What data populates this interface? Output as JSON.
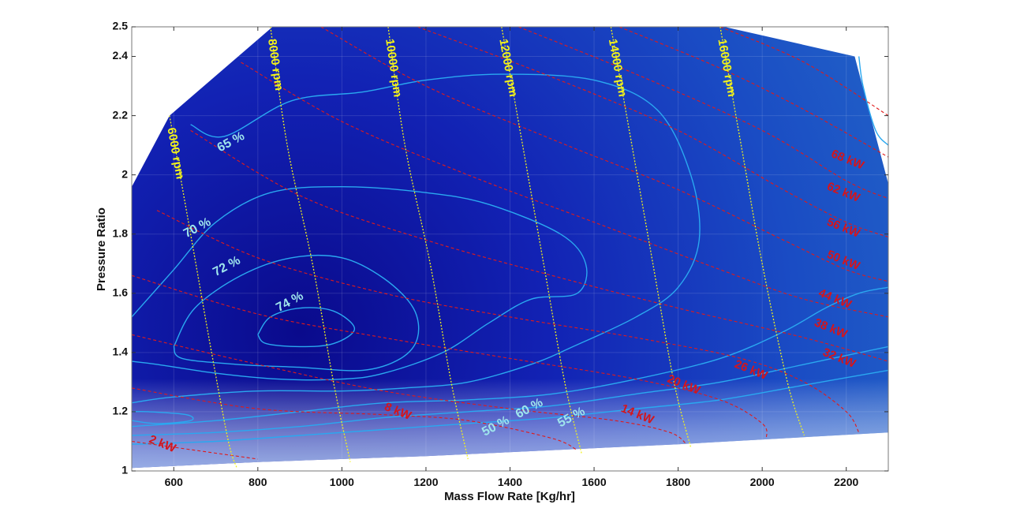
{
  "colors": {
    "background_dark": "#0a0a8c",
    "background_light": "#2060c8",
    "efficiency_contours": "#2aa8f0",
    "speed_lines": "#f2f21a",
    "power_lines": "#e01a1a"
  },
  "chart_data": {
    "type": "contour",
    "title": "",
    "xlabel": "Mass Flow Rate [Kg/hr]",
    "ylabel": "Pressure Ratio",
    "xlim": [
      500,
      2300
    ],
    "ylim": [
      1,
      2.5
    ],
    "xticks": [
      600,
      800,
      1000,
      1200,
      1400,
      1600,
      1800,
      2000,
      2200
    ],
    "yticks": [
      1,
      1.2,
      1.4,
      1.6,
      1.8,
      2,
      2.2,
      2.4,
      2.5
    ],
    "grid": true,
    "map_boundary": [
      [
        500,
        1.06
      ],
      [
        500,
        1.96
      ],
      [
        590,
        2.2
      ],
      [
        835,
        2.5
      ],
      [
        1910,
        2.5
      ],
      [
        2220,
        2.4
      ],
      [
        2300,
        1.97
      ],
      [
        2300,
        1.13
      ],
      [
        1800,
        1.09
      ],
      [
        1200,
        1.05
      ],
      [
        800,
        1.03
      ],
      [
        500,
        1.01
      ]
    ],
    "speed_lines": [
      {
        "label": "6000 rpm",
        "points": [
          [
            590,
            2.2
          ],
          [
            640,
            1.8
          ],
          [
            690,
            1.4
          ],
          [
            730,
            1.1
          ],
          [
            750,
            1.01
          ]
        ]
      },
      {
        "label": "8000 rpm",
        "points": [
          [
            830,
            2.5
          ],
          [
            870,
            2.1
          ],
          [
            930,
            1.7
          ],
          [
            980,
            1.3
          ],
          [
            1020,
            1.03
          ]
        ]
      },
      {
        "label": "10000 rpm",
        "points": [
          [
            1110,
            2.5
          ],
          [
            1150,
            2.1
          ],
          [
            1210,
            1.7
          ],
          [
            1260,
            1.3
          ],
          [
            1300,
            1.04
          ]
        ]
      },
      {
        "label": "12000 rpm",
        "points": [
          [
            1380,
            2.5
          ],
          [
            1430,
            2.1
          ],
          [
            1480,
            1.7
          ],
          [
            1530,
            1.3
          ],
          [
            1570,
            1.06
          ]
        ]
      },
      {
        "label": "14000 rpm",
        "points": [
          [
            1640,
            2.5
          ],
          [
            1690,
            2.1
          ],
          [
            1740,
            1.7
          ],
          [
            1790,
            1.3
          ],
          [
            1830,
            1.08
          ]
        ]
      },
      {
        "label": "16000 rpm",
        "points": [
          [
            1900,
            2.5
          ],
          [
            1950,
            2.1
          ],
          [
            2000,
            1.7
          ],
          [
            2060,
            1.3
          ],
          [
            2100,
            1.12
          ]
        ]
      }
    ],
    "efficiency_contours": [
      {
        "label": "74 %",
        "label_pos": [
          880,
          1.56
        ],
        "points": [
          [
            800,
            1.46
          ],
          [
            830,
            1.52
          ],
          [
            900,
            1.55
          ],
          [
            980,
            1.54
          ],
          [
            1030,
            1.48
          ],
          [
            980,
            1.43
          ],
          [
            900,
            1.42
          ],
          [
            820,
            1.43
          ],
          [
            800,
            1.46
          ]
        ]
      },
      {
        "label": "72 %",
        "label_pos": [
          730,
          1.68
        ],
        "points": [
          [
            600,
            1.42
          ],
          [
            650,
            1.55
          ],
          [
            760,
            1.66
          ],
          [
            880,
            1.72
          ],
          [
            1000,
            1.72
          ],
          [
            1100,
            1.65
          ],
          [
            1170,
            1.55
          ],
          [
            1180,
            1.45
          ],
          [
            1140,
            1.38
          ],
          [
            1050,
            1.34
          ],
          [
            900,
            1.35
          ],
          [
            750,
            1.36
          ],
          [
            620,
            1.38
          ],
          [
            600,
            1.42
          ]
        ]
      },
      {
        "label": "70 %",
        "label_pos": [
          660,
          1.81
        ],
        "points": [
          [
            500,
            1.52
          ],
          [
            600,
            1.68
          ],
          [
            700,
            1.84
          ],
          [
            830,
            1.94
          ],
          [
            1000,
            1.96
          ],
          [
            1200,
            1.94
          ],
          [
            1350,
            1.9
          ],
          [
            1520,
            1.8
          ],
          [
            1580,
            1.7
          ],
          [
            1560,
            1.6
          ],
          [
            1450,
            1.58
          ],
          [
            1350,
            1.5
          ],
          [
            1240,
            1.4
          ],
          [
            1100,
            1.33
          ],
          [
            1000,
            1.31
          ],
          [
            850,
            1.31
          ],
          [
            700,
            1.33
          ],
          [
            560,
            1.36
          ],
          [
            500,
            1.37
          ]
        ]
      },
      {
        "label": "65 %",
        "label_pos": [
          740,
          2.1
        ],
        "points": [
          [
            640,
            2.17
          ],
          [
            720,
            2.13
          ],
          [
            880,
            2.25
          ],
          [
            1050,
            2.28
          ],
          [
            1200,
            2.32
          ],
          [
            1380,
            2.34
          ],
          [
            1600,
            2.32
          ],
          [
            1750,
            2.22
          ],
          [
            1830,
            2.0
          ],
          [
            1850,
            1.78
          ],
          [
            1800,
            1.62
          ],
          [
            1700,
            1.52
          ],
          [
            1550,
            1.42
          ],
          [
            1450,
            1.36
          ],
          [
            1300,
            1.3
          ],
          [
            1150,
            1.28
          ],
          [
            1000,
            1.27
          ],
          [
            800,
            1.27
          ],
          [
            600,
            1.25
          ],
          [
            500,
            1.23
          ]
        ]
      },
      {
        "label": "60 %",
        "label_pos": [
          1450,
          1.2
        ],
        "points": [
          [
            500,
            1.15
          ],
          [
            700,
            1.17
          ],
          [
            900,
            1.2
          ],
          [
            1100,
            1.23
          ],
          [
            1300,
            1.24
          ],
          [
            1500,
            1.26
          ],
          [
            1700,
            1.31
          ],
          [
            1900,
            1.38
          ],
          [
            2050,
            1.47
          ],
          [
            2150,
            1.55
          ],
          [
            2230,
            1.6
          ],
          [
            2300,
            1.62
          ]
        ]
      },
      {
        "label": "55 %",
        "label_pos": [
          1550,
          1.17
        ],
        "points": [
          [
            500,
            1.12
          ],
          [
            700,
            1.13
          ],
          [
            900,
            1.15
          ],
          [
            1100,
            1.18
          ],
          [
            1300,
            1.2
          ],
          [
            1500,
            1.22
          ],
          [
            1700,
            1.26
          ],
          [
            1900,
            1.3
          ],
          [
            2100,
            1.36
          ],
          [
            2300,
            1.42
          ]
        ]
      },
      {
        "label": "50 %",
        "label_pos": [
          1370,
          1.14
        ],
        "points": [
          [
            500,
            1.09
          ],
          [
            700,
            1.1
          ],
          [
            900,
            1.12
          ],
          [
            1100,
            1.14
          ],
          [
            1300,
            1.16
          ],
          [
            1500,
            1.18
          ],
          [
            1700,
            1.21
          ],
          [
            1900,
            1.24
          ],
          [
            2100,
            1.29
          ],
          [
            2300,
            1.34
          ]
        ]
      },
      {
        "label": "",
        "label_pos": null,
        "points": [
          [
            500,
            1.2
          ],
          [
            540,
            1.2
          ],
          [
            630,
            1.19
          ],
          [
            640,
            1.17
          ],
          [
            560,
            1.16
          ],
          [
            500,
            1.17
          ]
        ]
      },
      {
        "label": "",
        "label_pos": null,
        "points": [
          [
            2230,
            2.4
          ],
          [
            2240,
            2.3
          ],
          [
            2270,
            2.15
          ],
          [
            2300,
            2.1
          ]
        ]
      }
    ],
    "power_lines": [
      {
        "label": "2 kW",
        "label_pos": [
          570,
          1.08
        ],
        "points": [
          [
            500,
            1.1
          ],
          [
            700,
            1.06
          ],
          [
            800,
            1.04
          ]
        ]
      },
      {
        "label": "8 kW",
        "label_pos": [
          1130,
          1.19
        ],
        "points": [
          [
            500,
            1.28
          ],
          [
            800,
            1.21
          ],
          [
            1100,
            1.19
          ],
          [
            1300,
            1.17
          ],
          [
            1500,
            1.11
          ],
          [
            1560,
            1.07
          ]
        ]
      },
      {
        "label": "14 kW",
        "label_pos": [
          1700,
          1.18
        ],
        "points": [
          [
            500,
            1.46
          ],
          [
            800,
            1.36
          ],
          [
            1100,
            1.27
          ],
          [
            1400,
            1.21
          ],
          [
            1650,
            1.17
          ],
          [
            1780,
            1.13
          ],
          [
            1820,
            1.09
          ]
        ]
      },
      {
        "label": "20 kW",
        "label_pos": [
          1810,
          1.28
        ],
        "points": [
          [
            500,
            1.66
          ],
          [
            800,
            1.53
          ],
          [
            1100,
            1.45
          ],
          [
            1400,
            1.38
          ],
          [
            1700,
            1.31
          ],
          [
            1900,
            1.24
          ],
          [
            2000,
            1.16
          ],
          [
            2010,
            1.11
          ]
        ]
      },
      {
        "label": "26 kW",
        "label_pos": [
          1970,
          1.33
        ],
        "points": [
          [
            560,
            1.88
          ],
          [
            800,
            1.72
          ],
          [
            1100,
            1.6
          ],
          [
            1400,
            1.52
          ],
          [
            1700,
            1.45
          ],
          [
            1950,
            1.38
          ],
          [
            2100,
            1.3
          ],
          [
            2200,
            1.2
          ],
          [
            2230,
            1.13
          ]
        ]
      },
      {
        "label": "32 kW",
        "label_pos": [
          2180,
          1.37
        ],
        "points": [
          [
            640,
            2.15
          ],
          [
            900,
            1.93
          ],
          [
            1200,
            1.78
          ],
          [
            1500,
            1.66
          ],
          [
            1800,
            1.55
          ],
          [
            2100,
            1.45
          ],
          [
            2300,
            1.37
          ]
        ]
      },
      {
        "label": "38 kW",
        "label_pos": [
          2160,
          1.47
        ],
        "points": [
          [
            760,
            2.38
          ],
          [
            1000,
            2.18
          ],
          [
            1300,
            2.0
          ],
          [
            1600,
            1.84
          ],
          [
            1900,
            1.68
          ],
          [
            2100,
            1.58
          ],
          [
            2300,
            1.52
          ]
        ]
      },
      {
        "label": "44 kW",
        "label_pos": [
          2170,
          1.57
        ],
        "points": [
          [
            950,
            2.5
          ],
          [
            1200,
            2.3
          ],
          [
            1500,
            2.12
          ],
          [
            1800,
            1.95
          ],
          [
            2050,
            1.78
          ],
          [
            2200,
            1.68
          ],
          [
            2300,
            1.64
          ]
        ]
      },
      {
        "label": "50 kW",
        "label_pos": [
          2190,
          1.7
        ],
        "points": [
          [
            1180,
            2.5
          ],
          [
            1500,
            2.33
          ],
          [
            1800,
            2.15
          ],
          [
            2050,
            1.95
          ],
          [
            2200,
            1.84
          ],
          [
            2300,
            1.79
          ]
        ]
      },
      {
        "label": "56 kW",
        "label_pos": [
          2190,
          1.81
        ],
        "points": [
          [
            1420,
            2.5
          ],
          [
            1700,
            2.34
          ],
          [
            2000,
            2.15
          ],
          [
            2200,
            1.98
          ],
          [
            2300,
            1.92
          ]
        ]
      },
      {
        "label": "62 kW",
        "label_pos": [
          2190,
          1.93
        ],
        "points": [
          [
            1660,
            2.5
          ],
          [
            1900,
            2.36
          ],
          [
            2100,
            2.22
          ],
          [
            2300,
            2.06
          ]
        ]
      },
      {
        "label": "68 kW",
        "label_pos": [
          2200,
          2.04
        ],
        "points": [
          [
            1900,
            2.5
          ],
          [
            2100,
            2.38
          ],
          [
            2300,
            2.2
          ]
        ]
      }
    ]
  }
}
